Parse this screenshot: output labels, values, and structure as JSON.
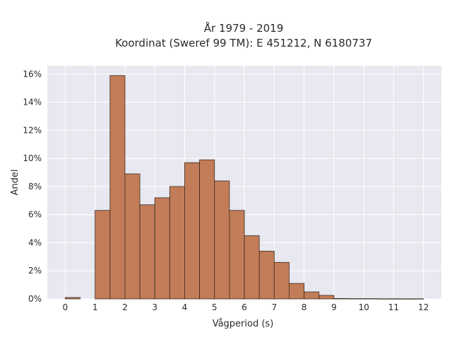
{
  "chart_data": {
    "type": "bar",
    "title": "År 1979 - 2019",
    "subtitle": "Koordinat (Sweref 99 TM): E 451212, N 6180737",
    "xlabel": "Vågperiod (s)",
    "ylabel": "Andel",
    "xlim": [
      -0.6,
      12.6
    ],
    "ylim": [
      0,
      16.6
    ],
    "x_ticks": [
      {
        "value": 0,
        "label": "0"
      },
      {
        "value": 1,
        "label": "1"
      },
      {
        "value": 2,
        "label": "2"
      },
      {
        "value": 3,
        "label": "3"
      },
      {
        "value": 4,
        "label": "4"
      },
      {
        "value": 5,
        "label": "5"
      },
      {
        "value": 6,
        "label": "6"
      },
      {
        "value": 7,
        "label": "7"
      },
      {
        "value": 8,
        "label": "8"
      },
      {
        "value": 9,
        "label": "9"
      },
      {
        "value": 10,
        "label": "10"
      },
      {
        "value": 11,
        "label": "11"
      },
      {
        "value": 12,
        "label": "12"
      }
    ],
    "y_ticks": [
      {
        "value": 0,
        "label": "0%"
      },
      {
        "value": 2,
        "label": "2%"
      },
      {
        "value": 4,
        "label": "4%"
      },
      {
        "value": 6,
        "label": "6%"
      },
      {
        "value": 8,
        "label": "8%"
      },
      {
        "value": 10,
        "label": "10%"
      },
      {
        "value": 12,
        "label": "12%"
      },
      {
        "value": 14,
        "label": "14%"
      },
      {
        "value": 16,
        "label": "16%"
      }
    ],
    "bin_width": 0.5,
    "bins": [
      {
        "start": 0.0,
        "value": 0.1
      },
      {
        "start": 0.5,
        "value": 0.0
      },
      {
        "start": 1.0,
        "value": 6.3
      },
      {
        "start": 1.5,
        "value": 15.9
      },
      {
        "start": 2.0,
        "value": 8.9
      },
      {
        "start": 2.5,
        "value": 6.7
      },
      {
        "start": 3.0,
        "value": 7.2
      },
      {
        "start": 3.5,
        "value": 8.0
      },
      {
        "start": 4.0,
        "value": 9.7
      },
      {
        "start": 4.5,
        "value": 9.9
      },
      {
        "start": 5.0,
        "value": 8.4
      },
      {
        "start": 5.5,
        "value": 6.3
      },
      {
        "start": 6.0,
        "value": 4.5
      },
      {
        "start": 6.5,
        "value": 3.4
      },
      {
        "start": 7.0,
        "value": 2.6
      },
      {
        "start": 7.5,
        "value": 1.1
      },
      {
        "start": 8.0,
        "value": 0.5
      },
      {
        "start": 8.5,
        "value": 0.25
      },
      {
        "start": 9.0,
        "value": 0.03
      },
      {
        "start": 9.5,
        "value": 0.02
      },
      {
        "start": 10.0,
        "value": 0.02
      },
      {
        "start": 10.5,
        "value": 0.01
      },
      {
        "start": 11.0,
        "value": 0.01
      },
      {
        "start": 11.5,
        "value": 0.01
      }
    ],
    "grid": true,
    "colors": {
      "bar_fill": "#c27d58",
      "bar_edge": "#3b2a22",
      "plot_background": "#e8e8f0",
      "grid_line": "#ffffff"
    }
  }
}
